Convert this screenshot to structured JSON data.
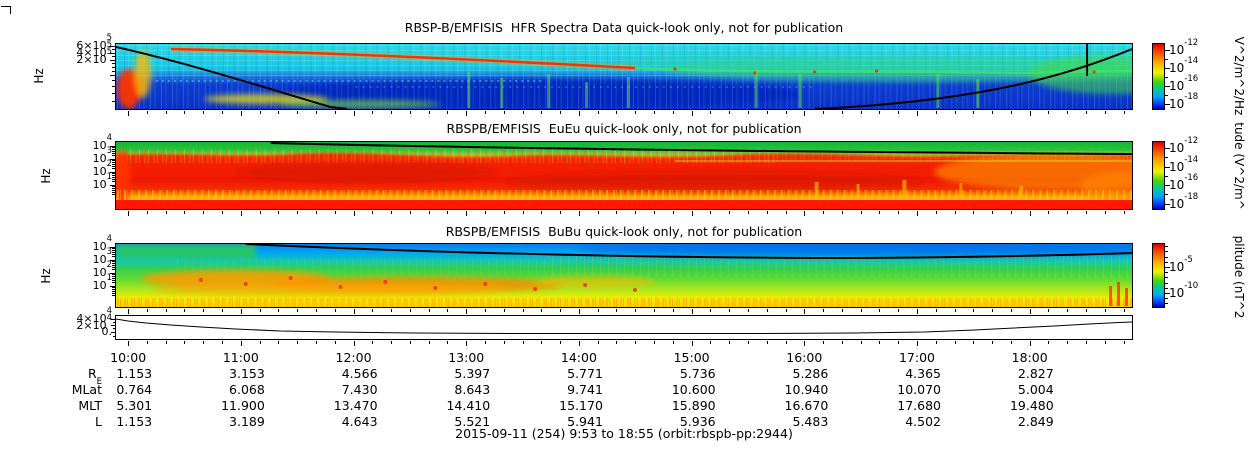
{
  "caption": "2015-09-11 (254) 9:53 to 18:55 (orbit:rbspb-pp:2944)",
  "time_axis": {
    "start": "9:53",
    "end": "18:55",
    "labels": [
      "10:00",
      "11:00",
      "12:00",
      "13:00",
      "14:00",
      "15:00",
      "16:00",
      "17:00",
      "18:00"
    ]
  },
  "ephemeris": {
    "rows": [
      {
        "label": "R",
        "sub": "E",
        "values": [
          "1.153",
          "3.153",
          "4.566",
          "5.397",
          "5.771",
          "5.736",
          "5.286",
          "4.365",
          "2.827"
        ]
      },
      {
        "label": "MLat",
        "values": [
          "0.764",
          "6.068",
          "7.430",
          "8.643",
          "9.741",
          "10.600",
          "10.940",
          "10.070",
          "5.004"
        ]
      },
      {
        "label": "MLT",
        "values": [
          "5.301",
          "11.900",
          "13.470",
          "14.410",
          "15.170",
          "15.890",
          "16.670",
          "17.680",
          "19.480"
        ]
      },
      {
        "label": "L",
        "values": [
          "1.153",
          "3.189",
          "4.643",
          "5.521",
          "5.941",
          "5.936",
          "5.483",
          "4.502",
          "2.849"
        ]
      }
    ]
  },
  "chart_data": [
    {
      "type": "heatmap",
      "title": "RBSP-B/EMFISIS  HFR Spectra Data quick-look only, not for publication",
      "ylabel": "Hz",
      "x_range": [
        "9:53",
        "18:55"
      ],
      "yaxis": {
        "scale": "log",
        "ticks": [
          {
            "base": "6×10",
            "exp": "5"
          },
          {
            "base": "4×10",
            "exp": "5"
          },
          {
            "base": "2×10",
            "exp": "5"
          }
        ]
      },
      "colorbar": {
        "unit": "V^2/m^2/Hz",
        "scale": "log",
        "ticks": [
          {
            "base": "10",
            "exp": "-12"
          },
          {
            "base": "10",
            "exp": "-14"
          },
          {
            "base": "10",
            "exp": "-16"
          },
          {
            "base": "10",
            "exp": "-18"
          }
        ]
      },
      "overlay": "black fce line: drops from top-left to panel bottom near 11:30, re-emerges after 17:00 rising to top-right; short vertical black line near 18:40",
      "features": "cyan banded background above ~200 kHz, deep blue below; intense red/yellow burst at orbit start below 200 kHz; narrow red/orange band drifting down from ~600 kHz at 10:00 to ~150 kHz by 13:00; patchy green/yellow emission 13:00-19:00"
    },
    {
      "type": "heatmap",
      "title": "RBSPB/EMFISIS  EuEu quick-look only, not for publication",
      "ylabel": "Hz",
      "x_range": [
        "9:53",
        "18:55"
      ],
      "yaxis": {
        "scale": "log",
        "ticks": [
          {
            "base": "10",
            "exp": "4"
          },
          {
            "base": "10",
            "exp": "3"
          },
          {
            "base": "10",
            "exp": "2"
          },
          {
            "base": "10",
            "exp": "1"
          }
        ]
      },
      "colorbar": {
        "unit": "tude (V^2/m^",
        "scale": "log",
        "ticks": [
          {
            "base": "10",
            "exp": "-12"
          },
          {
            "base": "10",
            "exp": "-14"
          },
          {
            "base": "10",
            "exp": "-16"
          },
          {
            "base": "10",
            "exp": "-18"
          }
        ]
      },
      "overlay": "black line sloping gently down across the top of the panel",
      "features": "green above ~3 kHz; saturated red broadband emission ~5 Hz-2 kHz for entire orbit with yellow/orange mottling and vertical burst striations; solid red band at lowest frequencies; red patch re-intensifies 17:30-18:55"
    },
    {
      "type": "heatmap",
      "title": "RBSPB/EMFISIS  BuBu quick-look only, not for publication",
      "ylabel": "Hz",
      "x_range": [
        "9:53",
        "18:55"
      ],
      "yaxis": {
        "scale": "log",
        "ticks": [
          {
            "base": "10",
            "exp": "4"
          },
          {
            "base": "10",
            "exp": "3"
          },
          {
            "base": "10",
            "exp": "2"
          },
          {
            "base": "10",
            "exp": "1"
          }
        ]
      },
      "colorbar": {
        "unit": "plitude (nT^2",
        "scale": "log",
        "ticks": [
          {
            "base": "10",
            "exp": "-5"
          },
          {
            "base": "10",
            "exp": "-10"
          }
        ]
      },
      "overlay": "black line sloping down from top-left, flattening near a few kHz",
      "features": "blue above ~2 kHz; green 100 Hz-2 kHz with vertical striations; yellow below ~30 Hz; orange/red patches 10:00-14:00 between ~20-200 Hz; red bursts near end of orbit"
    },
    {
      "type": "line",
      "title": "",
      "ylabel": "",
      "x_range": [
        "9:53",
        "18:55"
      ],
      "yaxis": {
        "scale": "linear",
        "ticks": [
          {
            "base": "4×10",
            "exp": "4"
          },
          {
            "base": "2×10",
            "exp": "4"
          },
          {
            "base": "0.",
            "exp": ""
          }
        ]
      },
      "x_hours": [
        9.88,
        10.0,
        10.17,
        10.33,
        10.5,
        10.75,
        11.0,
        11.5,
        12.0,
        13.0,
        14.0,
        15.0,
        16.0,
        17.0,
        17.5,
        18.0,
        18.5,
        18.92
      ],
      "approx_values": [
        42000,
        34000,
        26000,
        20000,
        15000,
        9000,
        6000,
        3000,
        1500,
        600,
        300,
        300,
        600,
        2000,
        4000,
        9000,
        20000,
        31000
      ],
      "description": "field-magnitude trace: steep fall from ~4×10^4 near perigee at 9:53, flat near 0 through apogee, rising again toward 18:55"
    }
  ],
  "colors": {
    "colorbar_top": "#d80000",
    "colorbar_bottom": "#0000bb"
  }
}
